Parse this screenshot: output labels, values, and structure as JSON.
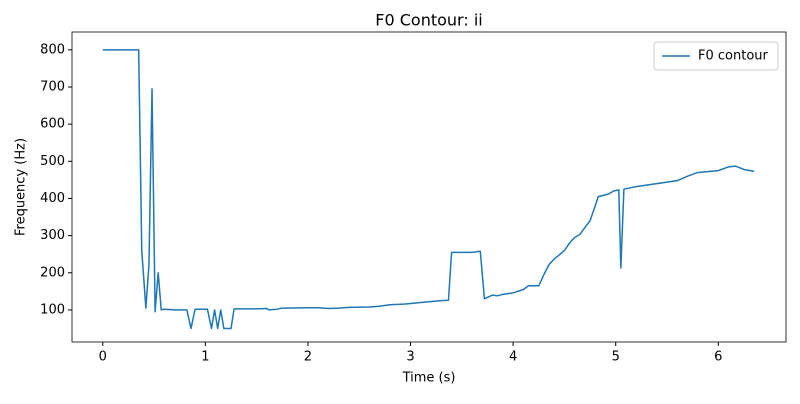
{
  "chart_data": {
    "type": "line",
    "title": "F0 Contour: ii",
    "x_label": "Time (s)",
    "y_label": "Frequency (Hz)",
    "x": [
      0,
      0.35,
      0.38,
      0.42,
      0.45,
      0.48,
      0.51,
      0.54,
      0.57,
      0.6,
      0.7,
      0.82,
      0.86,
      0.9,
      1.02,
      1.06,
      1.09,
      1.12,
      1.15,
      1.18,
      1.25,
      1.28,
      1.5,
      1.6,
      1.62,
      1.7,
      1.75,
      2.0,
      2.1,
      2.2,
      2.3,
      2.4,
      2.6,
      2.7,
      2.8,
      2.95,
      3.1,
      3.3,
      3.37,
      3.4,
      3.6,
      3.68,
      3.72,
      3.8,
      3.85,
      3.9,
      4.0,
      4.1,
      4.15,
      4.25,
      4.3,
      4.35,
      4.4,
      4.45,
      4.5,
      4.55,
      4.6,
      4.65,
      4.7,
      4.75,
      4.8,
      4.83,
      4.93,
      4.98,
      5.03,
      5.05,
      5.08,
      5.2,
      5.4,
      5.6,
      5.7,
      5.8,
      6.0,
      6.1,
      6.17,
      6.25,
      6.35
    ],
    "series": [
      {
        "name": "F0 contour",
        "color": "#1f77b4",
        "values": [
          800,
          800,
          260,
          105,
          220,
          695,
          95,
          200,
          100,
          102,
          100,
          100,
          50,
          102,
          102,
          50,
          100,
          50,
          100,
          50,
          50,
          103,
          103,
          104,
          100,
          102,
          105,
          106,
          106,
          104,
          105,
          107,
          108,
          110,
          114,
          116,
          120,
          125,
          126,
          255,
          255,
          258,
          130,
          140,
          138,
          142,
          146,
          155,
          165,
          165,
          195,
          222,
          237,
          248,
          260,
          280,
          295,
          303,
          322,
          340,
          380,
          405,
          412,
          420,
          423,
          213,
          425,
          432,
          440,
          448,
          460,
          470,
          475,
          485,
          487,
          478,
          473
        ]
      }
    ],
    "xlim": [
      -0.3,
      6.66
    ],
    "ylim": [
      13.7,
      848
    ],
    "xticks": [
      0,
      1,
      2,
      3,
      4,
      5,
      6
    ],
    "yticks": [
      100,
      200,
      300,
      400,
      500,
      600,
      700,
      800
    ],
    "legend": "upper right"
  }
}
